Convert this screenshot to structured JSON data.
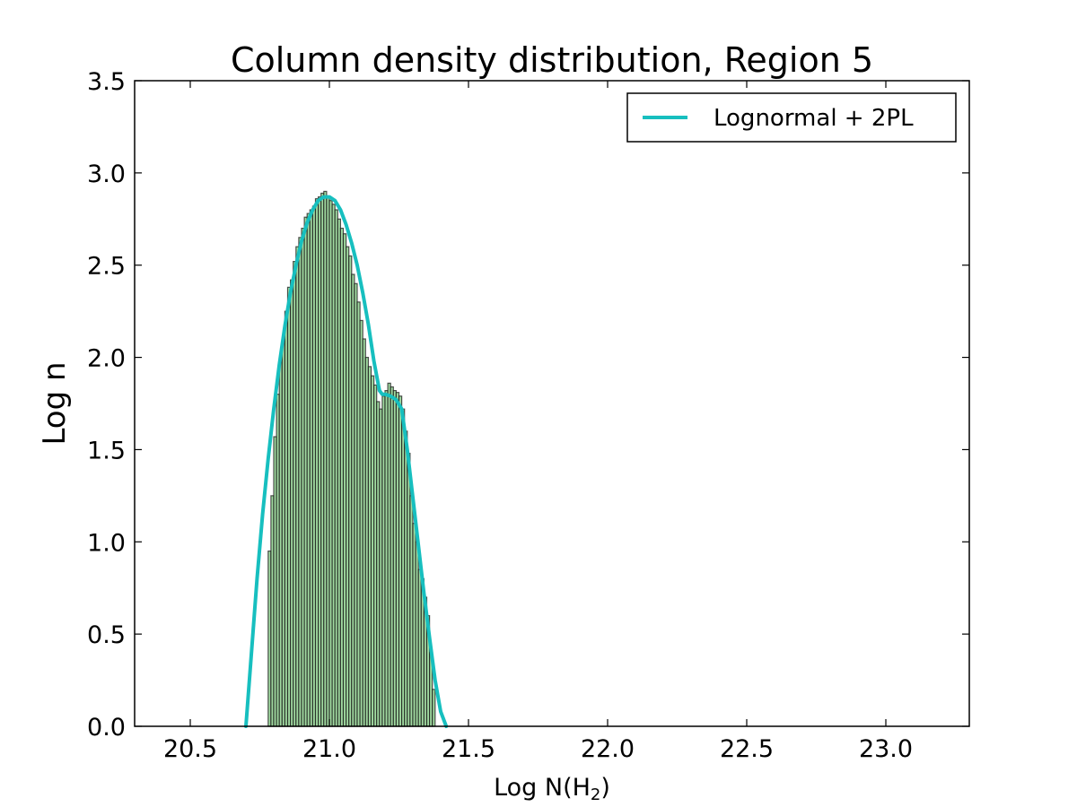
{
  "chart_data": {
    "type": "bar",
    "title": "Column density distribution, Region 5",
    "xlabel": "Log N(H",
    "xlabel_sub": "2",
    "xlabel_close": ")",
    "ylabel": "Log n",
    "xlim": [
      20.3,
      23.3
    ],
    "ylim": [
      0.0,
      3.5
    ],
    "xticks": [
      "20.5",
      "21.0",
      "21.5",
      "22.0",
      "22.5",
      "23.0"
    ],
    "xtick_values": [
      20.5,
      21.0,
      21.5,
      22.0,
      22.5,
      23.0
    ],
    "yticks": [
      "0.0",
      "0.5",
      "1.0",
      "1.5",
      "2.0",
      "2.5",
      "3.0",
      "3.5"
    ],
    "ytick_values": [
      0.0,
      0.5,
      1.0,
      1.5,
      2.0,
      2.5,
      3.0,
      3.5
    ],
    "grid": false,
    "legend_position": "top-right",
    "bin_width": 0.01,
    "bins": {
      "x": [
        20.78,
        20.79,
        20.8,
        20.81,
        20.82,
        20.83,
        20.84,
        20.85,
        20.86,
        20.87,
        20.88,
        20.89,
        20.9,
        20.91,
        20.92,
        20.93,
        20.94,
        20.95,
        20.96,
        20.97,
        20.98,
        20.99,
        21.0,
        21.01,
        21.02,
        21.03,
        21.04,
        21.05,
        21.06,
        21.07,
        21.08,
        21.09,
        21.1,
        21.11,
        21.12,
        21.13,
        21.14,
        21.15,
        21.16,
        21.17,
        21.18,
        21.19,
        21.2,
        21.21,
        21.22,
        21.23,
        21.24,
        21.25,
        21.26,
        21.27,
        21.28,
        21.29,
        21.3,
        21.31,
        21.32,
        21.33,
        21.34,
        21.35,
        21.36,
        21.37
      ],
      "values": [
        0.95,
        1.25,
        1.57,
        1.8,
        2.0,
        2.1,
        2.25,
        2.38,
        2.42,
        2.52,
        2.6,
        2.65,
        2.7,
        2.76,
        2.78,
        2.8,
        2.82,
        2.86,
        2.87,
        2.89,
        2.9,
        2.87,
        2.85,
        2.83,
        2.8,
        2.75,
        2.7,
        2.67,
        2.6,
        2.55,
        2.45,
        2.4,
        2.3,
        2.2,
        2.1,
        2.0,
        1.95,
        1.9,
        1.85,
        1.76,
        1.72,
        1.79,
        1.82,
        1.86,
        1.84,
        1.82,
        1.81,
        1.79,
        1.72,
        1.6,
        1.48,
        1.25,
        1.1,
        1.0,
        0.85,
        0.8,
        0.7,
        0.6,
        0.4,
        0.2
      ]
    },
    "series": [
      {
        "name": "Lognormal + 2PL",
        "type": "line",
        "x": [
          20.7,
          20.72,
          20.74,
          20.76,
          20.78,
          20.8,
          20.82,
          20.84,
          20.86,
          20.88,
          20.9,
          20.92,
          20.94,
          20.96,
          20.98,
          21.0,
          21.02,
          21.04,
          21.06,
          21.08,
          21.1,
          21.12,
          21.14,
          21.16,
          21.18,
          21.19,
          21.2,
          21.22,
          21.24,
          21.26,
          21.28,
          21.3,
          21.32,
          21.34,
          21.36,
          21.38,
          21.4,
          21.42
        ],
        "y": [
          0.0,
          0.4,
          0.8,
          1.15,
          1.45,
          1.72,
          1.96,
          2.17,
          2.35,
          2.5,
          2.63,
          2.73,
          2.8,
          2.85,
          2.87,
          2.87,
          2.85,
          2.8,
          2.72,
          2.62,
          2.5,
          2.35,
          2.18,
          1.98,
          1.82,
          1.8,
          1.8,
          1.79,
          1.77,
          1.72,
          1.5,
          1.24,
          0.98,
          0.72,
          0.48,
          0.25,
          0.08,
          0.0
        ]
      }
    ],
    "colors": {
      "bar_fill": "#90d490",
      "bar_edge": "#1a1a1a",
      "line": "#17bfbf",
      "axes": "#000000"
    }
  }
}
